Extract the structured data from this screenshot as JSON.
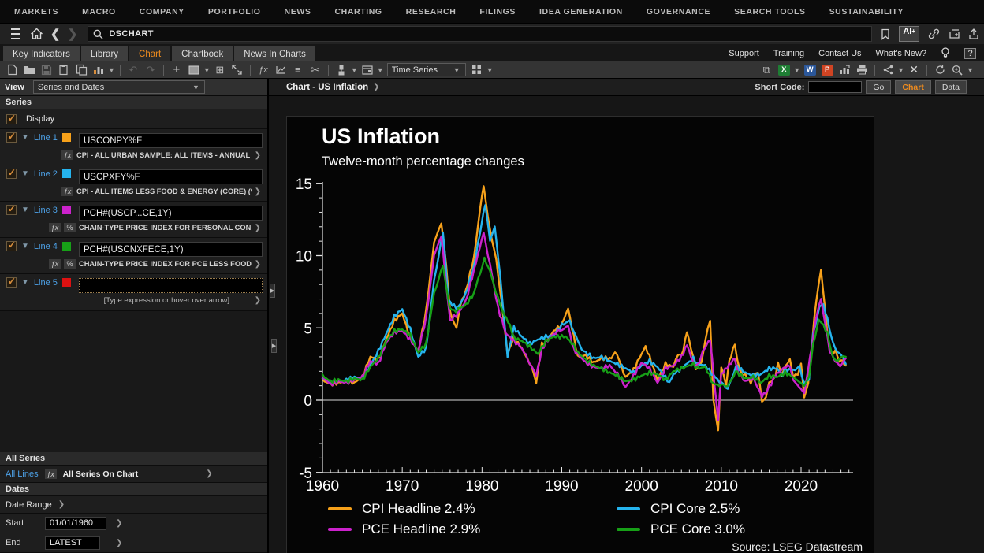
{
  "menubar": {
    "items": [
      "MARKETS",
      "MACRO",
      "COMPANY",
      "PORTFOLIO",
      "NEWS",
      "CHARTING",
      "RESEARCH",
      "FILINGS",
      "IDEA GENERATION",
      "GOVERNANCE",
      "SEARCH TOOLS",
      "SUSTAINABILITY"
    ]
  },
  "appbar": {
    "search_value": "DSCHART",
    "ai_label": "AI",
    "ai_plus": "+"
  },
  "tabs": {
    "items": [
      {
        "label": "Key Indicators"
      },
      {
        "label": "Library"
      },
      {
        "label": "Chart"
      },
      {
        "label": "Chartbook"
      },
      {
        "label": "News In Charts"
      }
    ],
    "right_links": [
      "Support",
      "Training",
      "Contact Us",
      "What's New?"
    ],
    "help_label": "?"
  },
  "toolbar": {
    "time_series_label": "Time Series",
    "office_letters": {
      "excel": "X",
      "word": "W",
      "powerpoint": "P"
    }
  },
  "sidebar": {
    "view_label": "View",
    "view_value": "Series and Dates",
    "series_header": "Series",
    "display_label": "Display",
    "fx_label": "ƒx",
    "pct_label": "%",
    "lines": [
      {
        "label": "Line 1",
        "color": "#f7a11a",
        "expression": "USCONPY%F",
        "description": "CPI - ALL URBAN SAMPLE: ALL ITEMS - ANNUAL INF..."
      },
      {
        "label": "Line 2",
        "color": "#25b4ee",
        "expression": "USCPXFY%F",
        "description": "CPI - ALL ITEMS LESS FOOD & ENERGY (CORE) (%YO..."
      },
      {
        "label": "Line 3",
        "color": "#cc22cc",
        "expression": "PCH#(USCP...CE,1Y)",
        "description": "CHAIN-TYPE PRICE INDEX FOR PERSONAL CON..."
      },
      {
        "label": "Line 4",
        "color": "#17a017",
        "expression": "PCH#(USCNXFECE,1Y)",
        "description": "CHAIN-TYPE PRICE INDEX FOR PCE LESS FOOD ..."
      },
      {
        "label": "Line 5",
        "color": "#dd1111",
        "expression": "",
        "hint": "[Type expression or hover over arrow]"
      }
    ],
    "all_series_header": "All Series",
    "all_lines_label": "All Lines",
    "all_series_on_chart": "All Series On Chart",
    "dates_header": "Dates",
    "date_range_label": "Date Range",
    "start_label": "Start",
    "start_value": "01/01/1960",
    "end_label": "End",
    "end_value": "LATEST"
  },
  "chart_header": {
    "breadcrumb": "Chart - US Inflation",
    "short_code_label": "Short Code:",
    "go_label": "Go",
    "chart_label": "Chart",
    "data_label": "Data"
  },
  "chart_data": {
    "type": "line",
    "title": "US Inflation",
    "subtitle": "Twelve-month percentage changes",
    "source": "Source: LSEG Datastream",
    "ylabel": "",
    "xlabel": "",
    "ylim": [
      -5,
      15
    ],
    "yticks": [
      -5,
      0,
      5,
      10,
      15
    ],
    "xticks": [
      1960,
      1970,
      1980,
      1990,
      2000,
      2010,
      2020
    ],
    "xlim": [
      1960,
      2026
    ],
    "grid": false,
    "zero_line": true,
    "legend_position": "bottom",
    "series": [
      {
        "name": "CPI Headline 2.4%",
        "color": "#f7a11a",
        "x": [
          1960,
          1961,
          1962,
          1963,
          1964,
          1965,
          1966,
          1967,
          1968,
          1969,
          1970,
          1971,
          1972,
          1973,
          1974,
          1974.9,
          1975.5,
          1976,
          1976.8,
          1977.3,
          1978,
          1979,
          1979.8,
          1980.2,
          1981,
          1981.8,
          1982.5,
          1983.2,
          1984,
          1985,
          1986.2,
          1986.8,
          1987.5,
          1988,
          1989,
          1990,
          1990.8,
          1991.5,
          1992,
          1993,
          1994,
          1995,
          1996,
          1996.9,
          1997.5,
          1998,
          1999,
          2000,
          2000.5,
          2001,
          2002,
          2003,
          2004,
          2004.6,
          2005,
          2005.7,
          2006.2,
          2006.8,
          2007.5,
          2008,
          2008.6,
          2009,
          2009.6,
          2010,
          2010.6,
          2011,
          2011.7,
          2012,
          2012.7,
          2013,
          2013.7,
          2014,
          2014.6,
          2015.1,
          2015.6,
          2016,
          2016.8,
          2017.1,
          2017.6,
          2018,
          2018.6,
          2019,
          2019.6,
          2020,
          2020.4,
          2020.9,
          2021.4,
          2021.9,
          2022.5,
          2023,
          2023.5,
          2023.9,
          2024.3,
          2024.8,
          2025.2,
          2025.6
        ],
        "values": [
          1.4,
          1.1,
          1.2,
          1.3,
          1.2,
          1.6,
          3.0,
          2.8,
          4.2,
          5.5,
          6.0,
          4.3,
          3.3,
          6.2,
          10.9,
          12.3,
          9.4,
          6.1,
          5.0,
          6.6,
          7.6,
          9.9,
          13.3,
          14.8,
          11.8,
          9.6,
          6.6,
          3.2,
          4.3,
          3.6,
          2.3,
          1.2,
          3.9,
          4.0,
          4.8,
          5.2,
          6.3,
          4.4,
          3.0,
          3.1,
          2.6,
          2.9,
          2.9,
          3.3,
          2.2,
          1.6,
          2.1,
          3.2,
          3.7,
          3.0,
          1.4,
          2.5,
          2.3,
          3.2,
          3.0,
          4.7,
          3.6,
          2.1,
          2.6,
          4.1,
          5.6,
          0.0,
          -2.1,
          2.2,
          1.1,
          2.7,
          3.9,
          2.7,
          1.6,
          1.8,
          1.2,
          1.6,
          2.0,
          -0.1,
          0.2,
          1.1,
          1.7,
          2.6,
          1.7,
          2.2,
          2.9,
          1.6,
          1.8,
          2.4,
          0.2,
          1.2,
          4.2,
          6.9,
          9.0,
          6.3,
          3.7,
          3.2,
          3.5,
          2.6,
          2.8,
          2.4
        ]
      },
      {
        "name": "CPI Core 2.5%",
        "color": "#25b4ee",
        "x": [
          1960,
          1961,
          1962,
          1963,
          1964,
          1965,
          1966,
          1967,
          1968,
          1969,
          1970,
          1971,
          1972,
          1973,
          1974,
          1975.1,
          1975.8,
          1976.5,
          1977,
          1978,
          1979,
          1980.4,
          1981,
          1981.6,
          1982.3,
          1983.2,
          1984,
          1985,
          1986,
          1987,
          1988,
          1989,
          1990,
          1991,
          1991.8,
          1992.5,
          1993,
          1994,
          1995,
          1996,
          1997,
          1998,
          1999,
          2000,
          2001,
          2002,
          2003.5,
          2004,
          2005,
          2006.5,
          2007,
          2008,
          2009,
          2010.8,
          2011.8,
          2012,
          2013,
          2014,
          2015,
          2016,
          2017,
          2017.7,
          2018,
          2019,
          2019.8,
          2020.4,
          2021,
          2021.5,
          2022.3,
          2022.8,
          2023.3,
          2024,
          2024.6,
          2025,
          2025.6
        ],
        "values": [
          1.5,
          1.3,
          1.3,
          1.4,
          1.6,
          1.5,
          2.4,
          3.4,
          4.6,
          5.8,
          6.3,
          4.9,
          3.0,
          3.6,
          8.3,
          11.7,
          6.9,
          6.5,
          6.4,
          7.4,
          9.3,
          13.6,
          11.0,
          12.0,
          8.5,
          3.0,
          5.0,
          4.4,
          3.9,
          4.2,
          4.4,
          4.5,
          5.2,
          5.5,
          4.4,
          3.5,
          3.3,
          2.9,
          3.0,
          2.7,
          2.5,
          2.2,
          1.9,
          2.4,
          2.7,
          2.3,
          1.2,
          1.8,
          2.2,
          2.9,
          2.5,
          2.4,
          1.7,
          0.8,
          2.2,
          2.3,
          1.9,
          1.7,
          1.8,
          2.2,
          2.2,
          1.7,
          2.1,
          2.1,
          2.3,
          1.2,
          1.4,
          4.5,
          6.5,
          6.6,
          5.6,
          3.9,
          3.3,
          3.1,
          2.5
        ]
      },
      {
        "name": "PCE Headline 2.9%",
        "color": "#cc22cc",
        "x": [
          1960,
          1961,
          1962,
          1963,
          1964,
          1965,
          1966,
          1967,
          1968,
          1969,
          1970,
          1971,
          1972,
          1973,
          1974,
          1974.9,
          1975.6,
          1976,
          1977,
          1978,
          1979,
          1980.2,
          1981,
          1982,
          1983,
          1984,
          1985,
          1986.8,
          1987.5,
          1988,
          1989,
          1990.8,
          1991.5,
          1992,
          1993,
          1994,
          1995,
          1996,
          1997,
          1998,
          1999,
          2000,
          2001,
          2002,
          2003,
          2004,
          2005,
          2005.7,
          2006.5,
          2007,
          2007.9,
          2008.6,
          2009.6,
          2010,
          2011.7,
          2012,
          2013,
          2014,
          2015.1,
          2016,
          2017,
          2018.6,
          2019,
          2020.4,
          2021.4,
          2021.9,
          2022.5,
          2023,
          2023.6,
          2024.3,
          2024.9,
          2025.3,
          2025.6
        ],
        "values": [
          1.6,
          1.1,
          1.3,
          1.2,
          1.4,
          1.6,
          2.7,
          2.5,
          4.0,
          4.7,
          4.8,
          4.2,
          3.4,
          5.7,
          10.0,
          11.4,
          7.5,
          5.5,
          6.0,
          6.9,
          9.0,
          11.6,
          9.4,
          6.4,
          4.6,
          4.1,
          3.6,
          1.7,
          3.5,
          4.0,
          4.6,
          5.1,
          3.5,
          3.2,
          2.6,
          2.3,
          2.2,
          2.4,
          1.8,
          0.9,
          1.7,
          2.6,
          2.2,
          1.2,
          2.2,
          2.4,
          3.0,
          3.8,
          2.5,
          2.4,
          3.6,
          4.2,
          -1.4,
          1.8,
          2.9,
          2.0,
          1.3,
          1.5,
          0.2,
          0.9,
          1.9,
          2.4,
          1.4,
          0.5,
          3.9,
          5.8,
          7.0,
          5.3,
          3.4,
          2.7,
          2.4,
          2.6,
          2.9
        ]
      },
      {
        "name": "PCE Core 3.0%",
        "color": "#17a017",
        "x": [
          1960,
          1961,
          1962,
          1963,
          1964,
          1965,
          1966,
          1967,
          1968,
          1969,
          1970,
          1971,
          1972,
          1973,
          1974,
          1975.1,
          1975.9,
          1976.5,
          1977,
          1978,
          1979,
          1980.3,
          1981,
          1982,
          1982.8,
          1983.5,
          1984,
          1985,
          1986,
          1987,
          1988,
          1989,
          1990.5,
          1991.5,
          1992,
          1993,
          1994,
          1995,
          1996,
          1997,
          1998,
          1999,
          2000,
          2001,
          2002,
          2003,
          2004,
          2005,
          2006.5,
          2007,
          2008,
          2009,
          2010.8,
          2011.8,
          2012,
          2013,
          2014,
          2015,
          2016,
          2017,
          2018,
          2019,
          2020.4,
          2021,
          2021.5,
          2022.2,
          2022.8,
          2023.3,
          2024,
          2024.6,
          2025,
          2025.6
        ],
        "values": [
          1.7,
          1.3,
          1.4,
          1.3,
          1.5,
          1.4,
          2.3,
          2.9,
          4.1,
          4.8,
          4.9,
          4.5,
          3.3,
          3.9,
          7.4,
          9.4,
          6.5,
          6.1,
          6.3,
          6.6,
          7.4,
          9.8,
          8.9,
          7.0,
          5.9,
          5.2,
          4.3,
          4.1,
          3.7,
          3.2,
          4.1,
          4.4,
          4.4,
          3.8,
          3.3,
          2.8,
          2.4,
          2.2,
          1.9,
          1.7,
          1.3,
          1.4,
          1.7,
          1.9,
          1.8,
          1.4,
          2.0,
          2.2,
          2.5,
          2.2,
          2.3,
          1.1,
          1.0,
          1.9,
          1.9,
          1.5,
          1.6,
          1.2,
          1.7,
          1.6,
          1.9,
          1.6,
          1.0,
          1.6,
          3.8,
          5.5,
          5.2,
          4.6,
          2.9,
          2.7,
          2.9,
          3.0
        ]
      }
    ]
  }
}
